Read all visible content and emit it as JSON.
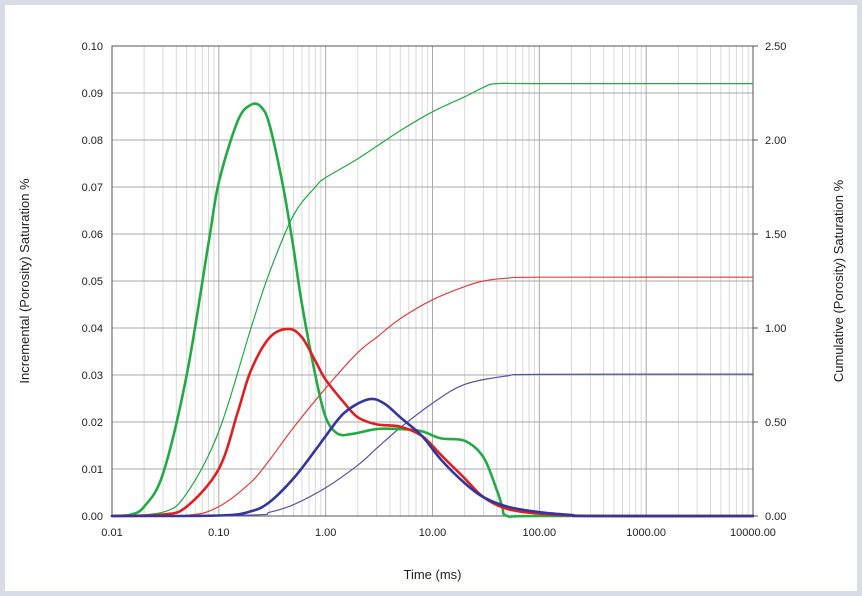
{
  "chart_data": {
    "type": "line",
    "title": "",
    "xlabel": "Time  (ms)",
    "ylabel_left": "Incremental (Porosity) Saturation %",
    "ylabel_right": "Cumulative (Porosity) Saturation %",
    "x_scale": "log",
    "xlim": [
      0.01,
      10000
    ],
    "ylim_left": [
      0,
      0.1
    ],
    "ylim_right": [
      0,
      2.5
    ],
    "x_ticks": [
      "0.01",
      "0.10",
      "1.00",
      "10.00",
      "100.00",
      "1000.00",
      "10000.00"
    ],
    "y_left_ticks": [
      "0.00",
      "0.01",
      "0.02",
      "0.03",
      "0.04",
      "0.05",
      "0.06",
      "0.07",
      "0.08",
      "0.09",
      "0.10"
    ],
    "y_right_ticks": [
      "0.00",
      "0.50",
      "1.00",
      "1.50",
      "2.00",
      "2.50"
    ],
    "grid": true,
    "legend": "none",
    "series": [
      {
        "axis": "left",
        "style": "incremental",
        "color": "#22aa44",
        "points": [
          [
            0.01,
            0
          ],
          [
            0.015,
            0.0003
          ],
          [
            0.02,
            0.002
          ],
          [
            0.03,
            0.009
          ],
          [
            0.05,
            0.03
          ],
          [
            0.08,
            0.058
          ],
          [
            0.1,
            0.071
          ],
          [
            0.15,
            0.084
          ],
          [
            0.2,
            0.0875
          ],
          [
            0.25,
            0.087
          ],
          [
            0.3,
            0.083
          ],
          [
            0.4,
            0.07
          ],
          [
            0.5,
            0.057
          ],
          [
            0.6,
            0.045
          ],
          [
            0.8,
            0.03
          ],
          [
            1.0,
            0.021
          ],
          [
            1.3,
            0.0175
          ],
          [
            1.8,
            0.0175
          ],
          [
            3,
            0.0185
          ],
          [
            5,
            0.0185
          ],
          [
            8,
            0.018
          ],
          [
            12,
            0.0165
          ],
          [
            20,
            0.016
          ],
          [
            30,
            0.0125
          ],
          [
            40,
            0.0055
          ],
          [
            45,
            0.002
          ],
          [
            50,
            0
          ],
          [
            100,
            0
          ],
          [
            10000,
            0
          ]
        ]
      },
      {
        "axis": "left",
        "style": "incremental",
        "color": "#e02020",
        "points": [
          [
            0.01,
            0
          ],
          [
            0.03,
            0.0003
          ],
          [
            0.05,
            0.002
          ],
          [
            0.1,
            0.01
          ],
          [
            0.15,
            0.022
          ],
          [
            0.2,
            0.031
          ],
          [
            0.3,
            0.038
          ],
          [
            0.45,
            0.0398
          ],
          [
            0.6,
            0.038
          ],
          [
            0.8,
            0.033
          ],
          [
            1.0,
            0.029
          ],
          [
            1.5,
            0.024
          ],
          [
            2,
            0.021
          ],
          [
            3,
            0.0195
          ],
          [
            5,
            0.019
          ],
          [
            8,
            0.017
          ],
          [
            12,
            0.013
          ],
          [
            20,
            0.008
          ],
          [
            30,
            0.004
          ],
          [
            50,
            0.0015
          ],
          [
            100,
            0.0005
          ],
          [
            200,
            0.0001
          ],
          [
            500,
            0
          ],
          [
            10000,
            0
          ]
        ]
      },
      {
        "axis": "left",
        "style": "incremental",
        "color": "#3535a0",
        "points": [
          [
            0.01,
            0
          ],
          [
            0.1,
            0.0001
          ],
          [
            0.2,
            0.001
          ],
          [
            0.3,
            0.003
          ],
          [
            0.5,
            0.008
          ],
          [
            0.8,
            0.014
          ],
          [
            1.0,
            0.017
          ],
          [
            1.5,
            0.022
          ],
          [
            2.5,
            0.0248
          ],
          [
            3.5,
            0.024
          ],
          [
            5,
            0.021
          ],
          [
            8,
            0.017
          ],
          [
            12,
            0.012
          ],
          [
            20,
            0.007
          ],
          [
            30,
            0.004
          ],
          [
            50,
            0.002
          ],
          [
            100,
            0.0008
          ],
          [
            200,
            0.0002
          ],
          [
            300,
            0
          ],
          [
            10000,
            0
          ]
        ]
      },
      {
        "axis": "right",
        "style": "cumulative",
        "color": "#22aa44",
        "points": [
          [
            0.01,
            0
          ],
          [
            0.03,
            0.02
          ],
          [
            0.05,
            0.12
          ],
          [
            0.1,
            0.45
          ],
          [
            0.2,
            1.0
          ],
          [
            0.3,
            1.3
          ],
          [
            0.5,
            1.6
          ],
          [
            0.8,
            1.75
          ],
          [
            1.0,
            1.8
          ],
          [
            2,
            1.9
          ],
          [
            5,
            2.05
          ],
          [
            10,
            2.15
          ],
          [
            20,
            2.23
          ],
          [
            30,
            2.28
          ],
          [
            40,
            2.3
          ],
          [
            100,
            2.3
          ],
          [
            10000,
            2.3
          ]
        ]
      },
      {
        "axis": "right",
        "style": "cumulative",
        "color": "#e04040",
        "points": [
          [
            0.01,
            0
          ],
          [
            0.05,
            0.003
          ],
          [
            0.1,
            0.05
          ],
          [
            0.2,
            0.18
          ],
          [
            0.3,
            0.3
          ],
          [
            0.5,
            0.47
          ],
          [
            1.0,
            0.68
          ],
          [
            2,
            0.87
          ],
          [
            3,
            0.95
          ],
          [
            5,
            1.05
          ],
          [
            10,
            1.15
          ],
          [
            20,
            1.22
          ],
          [
            30,
            1.25
          ],
          [
            50,
            1.265
          ],
          [
            100,
            1.27
          ],
          [
            10000,
            1.27
          ]
        ]
      },
      {
        "axis": "right",
        "style": "cumulative",
        "color": "#5555a8",
        "points": [
          [
            0.01,
            0
          ],
          [
            0.2,
            0.005
          ],
          [
            0.3,
            0.02
          ],
          [
            0.5,
            0.06
          ],
          [
            1.0,
            0.15
          ],
          [
            2,
            0.27
          ],
          [
            3,
            0.36
          ],
          [
            5,
            0.47
          ],
          [
            10,
            0.6
          ],
          [
            20,
            0.7
          ],
          [
            50,
            0.745
          ],
          [
            100,
            0.753
          ],
          [
            10000,
            0.755
          ]
        ]
      }
    ]
  }
}
